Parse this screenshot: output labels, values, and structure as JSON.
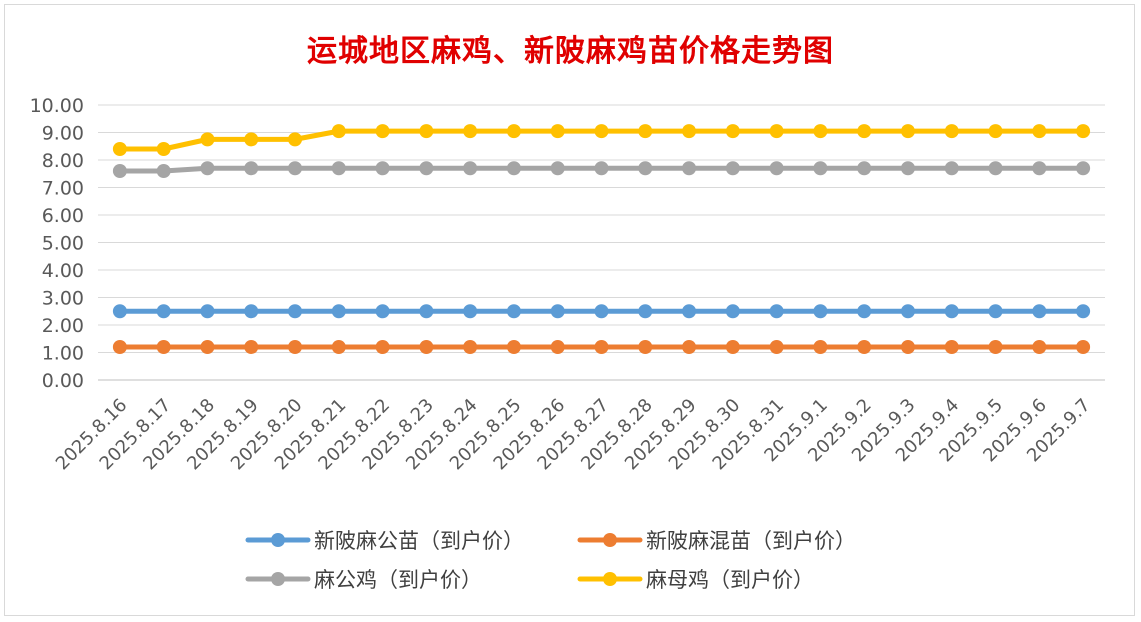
{
  "chart_data": {
    "type": "line",
    "title": "运城地区麻鸡、新陂麻鸡苗价格走势图",
    "categories": [
      "2025.8.16",
      "2025.8.17",
      "2025.8.18",
      "2025.8.19",
      "2025.8.20",
      "2025.8.21",
      "2025.8.22",
      "2025.8.23",
      "2025.8.24",
      "2025.8.25",
      "2025.8.26",
      "2025.8.27",
      "2025.8.28",
      "2025.8.29",
      "2025.8.30",
      "2025.8.31",
      "2025.9.1",
      "2025.9.2",
      "2025.9.3",
      "2025.9.4",
      "2025.9.5",
      "2025.9.6",
      "2025.9.7"
    ],
    "y_ticks": [
      "0.00",
      "1.00",
      "2.00",
      "3.00",
      "4.00",
      "5.00",
      "6.00",
      "7.00",
      "8.00",
      "9.00",
      "10.00"
    ],
    "ylim": [
      0,
      10
    ],
    "grid": true,
    "legend_position": "bottom",
    "series": [
      {
        "name": "新陂麻公苗（到户价）",
        "color": "#5b9bd5",
        "values": [
          2.5,
          2.5,
          2.5,
          2.5,
          2.5,
          2.5,
          2.5,
          2.5,
          2.5,
          2.5,
          2.5,
          2.5,
          2.5,
          2.5,
          2.5,
          2.5,
          2.5,
          2.5,
          2.5,
          2.5,
          2.5,
          2.5,
          2.5
        ]
      },
      {
        "name": "新陂麻混苗（到户价）",
        "color": "#ed7d31",
        "values": [
          1.2,
          1.2,
          1.2,
          1.2,
          1.2,
          1.2,
          1.2,
          1.2,
          1.2,
          1.2,
          1.2,
          1.2,
          1.2,
          1.2,
          1.2,
          1.2,
          1.2,
          1.2,
          1.2,
          1.2,
          1.2,
          1.2,
          1.2
        ]
      },
      {
        "name": "麻公鸡（到户价）",
        "color": "#a5a5a5",
        "values": [
          7.6,
          7.6,
          7.7,
          7.7,
          7.7,
          7.7,
          7.7,
          7.7,
          7.7,
          7.7,
          7.7,
          7.7,
          7.7,
          7.7,
          7.7,
          7.7,
          7.7,
          7.7,
          7.7,
          7.7,
          7.7,
          7.7,
          7.7
        ]
      },
      {
        "name": "麻母鸡（到户价）",
        "color": "#ffc000",
        "values": [
          8.4,
          8.4,
          8.75,
          8.75,
          8.75,
          9.05,
          9.05,
          9.05,
          9.05,
          9.05,
          9.05,
          9.05,
          9.05,
          9.05,
          9.05,
          9.05,
          9.05,
          9.05,
          9.05,
          9.05,
          9.05,
          9.05,
          9.05
        ]
      }
    ]
  }
}
